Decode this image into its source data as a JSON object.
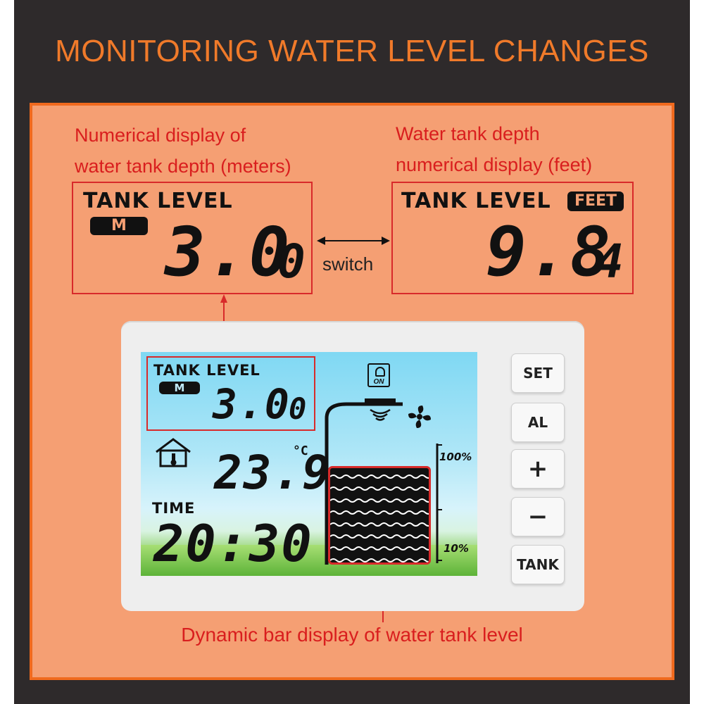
{
  "headline": "MONITORING WATER LEVEL CHANGES",
  "captions": {
    "meters_line1": "Numerical display of",
    "meters_line2": "water tank depth (meters)",
    "feet_line1": "Water tank depth",
    "feet_line2": "numerical display (feet)",
    "switch": "switch",
    "bar_display": "Dynamic bar display of water tank level"
  },
  "meters_display": {
    "title": "TANK LEVEL",
    "unit": "M",
    "value": "3.0",
    "extra_digit": "0"
  },
  "feet_display": {
    "title": "TANK LEVEL",
    "unit": "FEET",
    "value": "9.8",
    "extra_digit": "4"
  },
  "device_screen": {
    "tank_title": "TANK LEVEL",
    "tank_unit": "M",
    "tank_value": "3.0",
    "tank_extra_digit": "0",
    "pump_label": "ON",
    "temperature_unit": "°C",
    "temperature": "23.9",
    "time_label": "TIME",
    "time": "20:30",
    "scale_top": "100%",
    "scale_bottom": "10%",
    "level_fraction": 0.92
  },
  "buttons": {
    "set": "SET",
    "al": "AL",
    "plus": "+",
    "minus": "−",
    "tank": "TANK"
  },
  "colors": {
    "accent_orange": "#f07a2a",
    "annotation_red": "#d91e1e",
    "panel": "#f59f73"
  }
}
